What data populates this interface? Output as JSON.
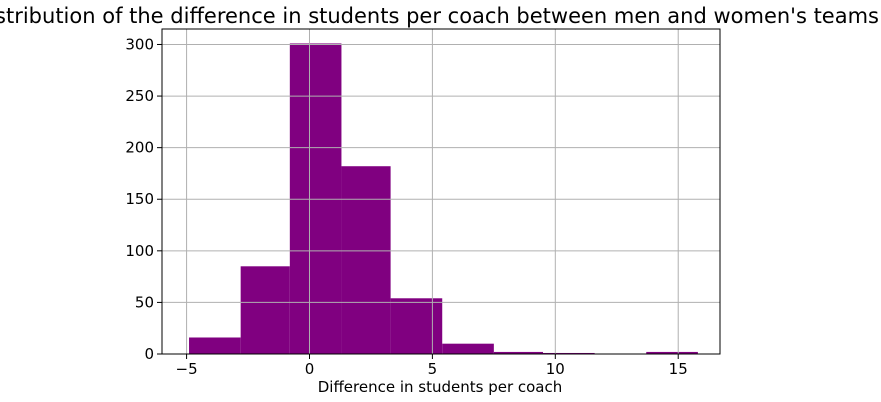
{
  "chart_data": {
    "type": "bar",
    "title": "Distribution of the difference in students per coach between men and women's teams",
    "xlabel": "Difference in students per coach",
    "ylabel": "",
    "bar_color": "#800080",
    "grid": true,
    "xlim": [
      -6.0,
      16.7
    ],
    "ylim": [
      0,
      315
    ],
    "xticks": [
      -5,
      0,
      5,
      10,
      15
    ],
    "yticks": [
      0,
      50,
      100,
      150,
      200,
      250,
      300
    ],
    "bins": [
      {
        "x0": -4.9,
        "x1": -2.8,
        "count": 16
      },
      {
        "x0": -2.8,
        "x1": -0.8,
        "count": 85
      },
      {
        "x0": -0.8,
        "x1": 1.3,
        "count": 301
      },
      {
        "x0": 1.3,
        "x1": 3.3,
        "count": 182
      },
      {
        "x0": 3.3,
        "x1": 5.4,
        "count": 54
      },
      {
        "x0": 5.4,
        "x1": 7.5,
        "count": 10
      },
      {
        "x0": 7.5,
        "x1": 9.5,
        "count": 2
      },
      {
        "x0": 9.5,
        "x1": 11.6,
        "count": 1
      },
      {
        "x0": 11.6,
        "x1": 13.7,
        "count": 0
      },
      {
        "x0": 13.7,
        "x1": 15.8,
        "count": 2
      }
    ]
  }
}
